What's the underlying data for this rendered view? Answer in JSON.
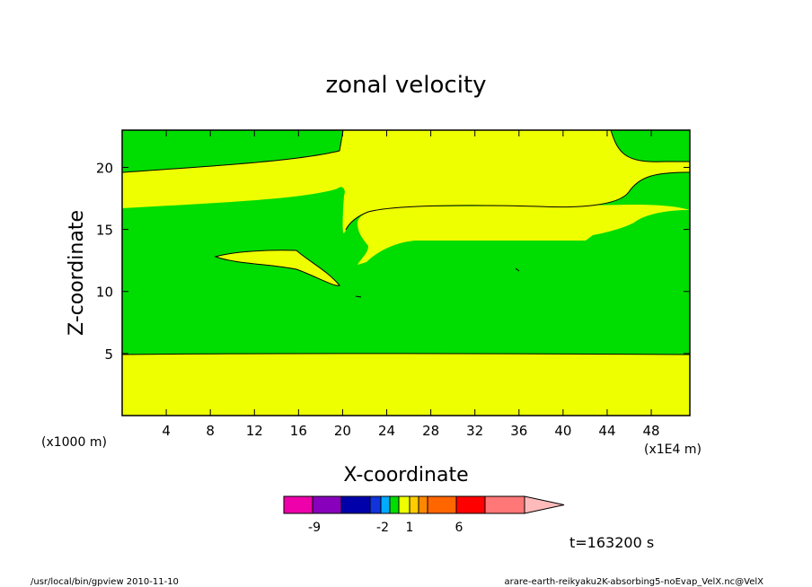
{
  "chart_data": {
    "type": "heatmap",
    "title": "zonal velocity",
    "xlabel": "X-coordinate",
    "ylabel": "Z-coordinate",
    "x_unit_left": "(x1000 m)",
    "x_unit_right": "(x1E4 m)",
    "xlim": [
      0,
      51.5
    ],
    "ylim": [
      0,
      23
    ],
    "x_ticks": [
      "4",
      "8",
      "12",
      "16",
      "20",
      "24",
      "28",
      "32",
      "36",
      "40",
      "44",
      "48"
    ],
    "y_ticks": [
      "5",
      "10",
      "15",
      "20"
    ],
    "contour_fill_colors": {
      "positive_band": "#00dd00",
      "near_zero_band": "#eeff00"
    },
    "colorbar": {
      "colors": [
        "#ee00aa",
        "#8800bb",
        "#0000aa",
        "#1133dd",
        "#00aaff",
        "#00dd00",
        "#eeff00",
        "#ffcc00",
        "#ff8800",
        "#ff6600",
        "#ff0000",
        "#ff7777",
        "#ffbbbb"
      ],
      "labels": [
        "-9",
        "-2",
        "1",
        "6"
      ]
    },
    "annotation": "t=163200 s"
  },
  "footer": {
    "left": "/usr/local/bin/gpview   2010-11-10",
    "right": "arare-earth-reikyaku2K-absorbing5-noEvap_VelX.nc@VelX"
  }
}
